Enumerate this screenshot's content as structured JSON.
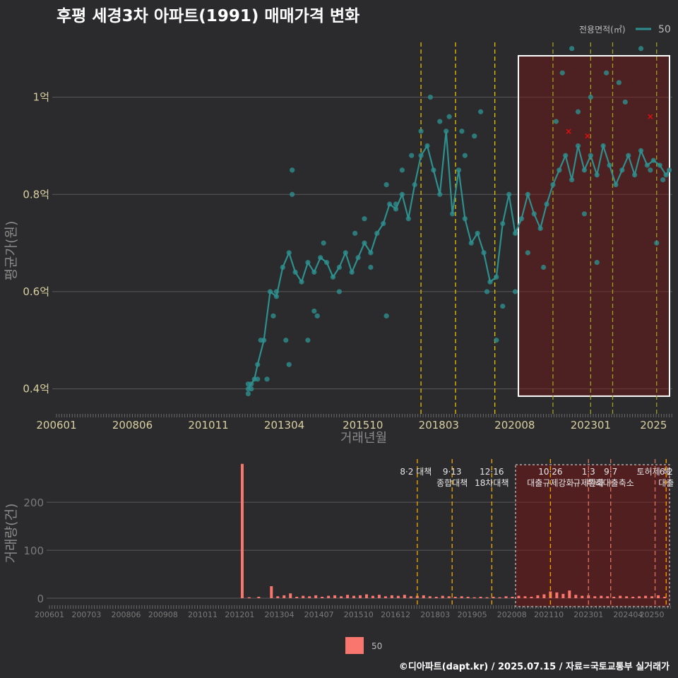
{
  "chart_data": [
    {
      "type": "line",
      "title": "후평 세경3차 아파트(1991) 매매가격 변화",
      "xlabel": "거래년월",
      "ylabel": "평균가(원)",
      "x_ticks": [
        "200601",
        "200806",
        "201011",
        "201304",
        "201510",
        "201803",
        "202008",
        "202301",
        "2025"
      ],
      "y_ticks": [
        {
          "v": 0.4,
          "label": "0.4억"
        },
        {
          "v": 0.6,
          "label": "0.6억"
        },
        {
          "v": 0.8,
          "label": "0.8억"
        },
        {
          "v": 1.0,
          "label": "1억"
        }
      ],
      "ylim": [
        0.35,
        1.12
      ],
      "xlim": [
        2006.0,
        2025.6
      ],
      "legend": {
        "title": "전용면적(㎡)",
        "entries": [
          "50"
        ],
        "placement": "top-right"
      },
      "series": [
        {
          "name": "50",
          "color": "#2e8f8f",
          "points": [
            [
              2012.1,
              0.4
            ],
            [
              2012.2,
              0.41
            ],
            [
              2012.3,
              0.42
            ],
            [
              2012.4,
              0.45
            ],
            [
              2012.6,
              0.5
            ],
            [
              2012.8,
              0.6
            ],
            [
              2013.0,
              0.59
            ],
            [
              2013.2,
              0.65
            ],
            [
              2013.4,
              0.68
            ],
            [
              2013.6,
              0.64
            ],
            [
              2013.8,
              0.62
            ],
            [
              2014.0,
              0.66
            ],
            [
              2014.2,
              0.64
            ],
            [
              2014.4,
              0.67
            ],
            [
              2014.6,
              0.66
            ],
            [
              2014.8,
              0.63
            ],
            [
              2015.0,
              0.65
            ],
            [
              2015.2,
              0.68
            ],
            [
              2015.4,
              0.64
            ],
            [
              2015.6,
              0.67
            ],
            [
              2015.8,
              0.7
            ],
            [
              2016.0,
              0.68
            ],
            [
              2016.2,
              0.72
            ],
            [
              2016.4,
              0.74
            ],
            [
              2016.6,
              0.78
            ],
            [
              2016.8,
              0.77
            ],
            [
              2017.0,
              0.8
            ],
            [
              2017.2,
              0.75
            ],
            [
              2017.4,
              0.82
            ],
            [
              2017.6,
              0.88
            ],
            [
              2017.8,
              0.9
            ],
            [
              2018.0,
              0.85
            ],
            [
              2018.2,
              0.8
            ],
            [
              2018.4,
              0.93
            ],
            [
              2018.6,
              0.76
            ],
            [
              2018.8,
              0.85
            ],
            [
              2019.0,
              0.75
            ],
            [
              2019.2,
              0.7
            ],
            [
              2019.4,
              0.72
            ],
            [
              2019.6,
              0.68
            ],
            [
              2019.8,
              0.62
            ],
            [
              2020.0,
              0.63
            ],
            [
              2020.2,
              0.74
            ],
            [
              2020.4,
              0.8
            ],
            [
              2020.6,
              0.72
            ],
            [
              2020.8,
              0.75
            ],
            [
              2021.0,
              0.8
            ],
            [
              2021.2,
              0.76
            ],
            [
              2021.4,
              0.73
            ],
            [
              2021.6,
              0.78
            ],
            [
              2021.8,
              0.82
            ],
            [
              2022.0,
              0.85
            ],
            [
              2022.2,
              0.88
            ],
            [
              2022.4,
              0.83
            ],
            [
              2022.6,
              0.9
            ],
            [
              2022.8,
              0.85
            ],
            [
              2023.0,
              0.88
            ],
            [
              2023.2,
              0.84
            ],
            [
              2023.4,
              0.9
            ],
            [
              2023.6,
              0.86
            ],
            [
              2023.8,
              0.82
            ],
            [
              2024.0,
              0.85
            ],
            [
              2024.2,
              0.88
            ],
            [
              2024.4,
              0.84
            ],
            [
              2024.6,
              0.89
            ],
            [
              2024.8,
              0.86
            ],
            [
              2025.0,
              0.87
            ],
            [
              2025.2,
              0.86
            ],
            [
              2025.4,
              0.84
            ],
            [
              2025.5,
              0.85
            ]
          ],
          "scatter": [
            [
              2012.1,
              0.39
            ],
            [
              2012.1,
              0.41
            ],
            [
              2012.2,
              0.4
            ],
            [
              2012.4,
              0.42
            ],
            [
              2012.5,
              0.5
            ],
            [
              2012.7,
              0.42
            ],
            [
              2012.9,
              0.55
            ],
            [
              2013.0,
              0.6
            ],
            [
              2013.3,
              0.5
            ],
            [
              2013.4,
              0.45
            ],
            [
              2013.5,
              0.8
            ],
            [
              2013.5,
              0.85
            ],
            [
              2014.0,
              0.5
            ],
            [
              2014.2,
              0.56
            ],
            [
              2014.3,
              0.55
            ],
            [
              2014.5,
              0.7
            ],
            [
              2015.0,
              0.6
            ],
            [
              2015.5,
              0.72
            ],
            [
              2015.8,
              0.75
            ],
            [
              2016.0,
              0.65
            ],
            [
              2016.5,
              0.55
            ],
            [
              2016.5,
              0.82
            ],
            [
              2016.8,
              0.78
            ],
            [
              2017.0,
              0.85
            ],
            [
              2017.3,
              0.88
            ],
            [
              2017.6,
              0.93
            ],
            [
              2017.9,
              1.0
            ],
            [
              2018.2,
              0.95
            ],
            [
              2018.5,
              0.96
            ],
            [
              2018.9,
              0.93
            ],
            [
              2019.0,
              0.88
            ],
            [
              2019.3,
              0.92
            ],
            [
              2019.5,
              0.97
            ],
            [
              2019.7,
              0.6
            ],
            [
              2020.0,
              0.5
            ],
            [
              2020.2,
              0.57
            ],
            [
              2020.6,
              0.6
            ],
            [
              2021.0,
              0.68
            ],
            [
              2021.5,
              0.65
            ],
            [
              2021.9,
              0.95
            ],
            [
              2022.1,
              1.05
            ],
            [
              2022.4,
              1.1
            ],
            [
              2022.6,
              0.97
            ],
            [
              2022.8,
              0.76
            ],
            [
              2023.0,
              1.0
            ],
            [
              2023.2,
              0.66
            ],
            [
              2023.5,
              1.05
            ],
            [
              2023.9,
              1.03
            ],
            [
              2024.1,
              0.99
            ],
            [
              2024.6,
              1.1
            ],
            [
              2024.9,
              0.85
            ],
            [
              2025.1,
              0.7
            ],
            [
              2025.3,
              0.83
            ]
          ],
          "outliers": [
            [
              2022.3,
              0.93
            ],
            [
              2022.9,
              0.92
            ],
            [
              2024.9,
              0.96
            ]
          ]
        }
      ],
      "shaded_region": [
        2020.7,
        2025.6
      ],
      "event_lines": [
        2017.6,
        2018.7,
        2019.95,
        2021.8,
        2023.0,
        2023.7,
        2025.1
      ]
    },
    {
      "type": "bar",
      "xlabel": "",
      "ylabel": "거래량(건)",
      "x_ticks": [
        "200601",
        "200703",
        "200806",
        "200908",
        "201011",
        "201201",
        "201304",
        "201407",
        "201510",
        "201612",
        "201803",
        "201905",
        "202008",
        "202110",
        "202301",
        "202404",
        "20250"
      ],
      "y_ticks": [
        0,
        100,
        200
      ],
      "ylim": [
        0,
        290
      ],
      "legend": {
        "entries": [
          "50"
        ],
        "placement": "bottom"
      },
      "series": [
        {
          "name": "50",
          "color": "#f8766d",
          "bars": [
            [
              2012.08,
              280
            ],
            [
              2012.3,
              2
            ],
            [
              2012.6,
              3
            ],
            [
              2013.0,
              25
            ],
            [
              2013.2,
              4
            ],
            [
              2013.4,
              6
            ],
            [
              2013.6,
              10
            ],
            [
              2013.8,
              3
            ],
            [
              2014.0,
              5
            ],
            [
              2014.2,
              4
            ],
            [
              2014.4,
              6
            ],
            [
              2014.6,
              3
            ],
            [
              2014.8,
              5
            ],
            [
              2015.0,
              6
            ],
            [
              2015.2,
              4
            ],
            [
              2015.4,
              7
            ],
            [
              2015.6,
              5
            ],
            [
              2015.8,
              6
            ],
            [
              2016.0,
              8
            ],
            [
              2016.2,
              5
            ],
            [
              2016.4,
              7
            ],
            [
              2016.6,
              4
            ],
            [
              2016.8,
              6
            ],
            [
              2017.0,
              5
            ],
            [
              2017.2,
              7
            ],
            [
              2017.4,
              4
            ],
            [
              2017.6,
              5
            ],
            [
              2017.8,
              6
            ],
            [
              2018.0,
              4
            ],
            [
              2018.2,
              3
            ],
            [
              2018.4,
              5
            ],
            [
              2018.6,
              4
            ],
            [
              2018.8,
              3
            ],
            [
              2019.0,
              4
            ],
            [
              2019.2,
              3
            ],
            [
              2019.4,
              2
            ],
            [
              2019.6,
              3
            ],
            [
              2019.8,
              2
            ],
            [
              2020.0,
              3
            ],
            [
              2020.2,
              2
            ],
            [
              2020.4,
              4
            ],
            [
              2020.6,
              3
            ],
            [
              2020.8,
              5
            ],
            [
              2021.0,
              4
            ],
            [
              2021.2,
              3
            ],
            [
              2021.4,
              6
            ],
            [
              2021.6,
              8
            ],
            [
              2021.8,
              14
            ],
            [
              2022.0,
              12
            ],
            [
              2022.2,
              9
            ],
            [
              2022.4,
              16
            ],
            [
              2022.6,
              7
            ],
            [
              2022.8,
              5
            ],
            [
              2023.0,
              6
            ],
            [
              2023.2,
              4
            ],
            [
              2023.4,
              5
            ],
            [
              2023.6,
              4
            ],
            [
              2023.8,
              3
            ],
            [
              2024.0,
              5
            ],
            [
              2024.2,
              4
            ],
            [
              2024.4,
              3
            ],
            [
              2024.6,
              4
            ],
            [
              2024.8,
              5
            ],
            [
              2025.0,
              4
            ],
            [
              2025.2,
              6
            ],
            [
              2025.4,
              3
            ]
          ]
        }
      ],
      "shaded_region": [
        2020.7,
        2025.6
      ],
      "annotations": [
        {
          "x": 2017.6,
          "lines": [
            "8·2 대책"
          ],
          "color": "#e8a000"
        },
        {
          "x": 2018.7,
          "lines": [
            "9·13",
            "종합대책"
          ],
          "color": "#e8a000"
        },
        {
          "x": 2019.95,
          "lines": [
            "12·16",
            "18차대책"
          ],
          "color": "#e8a000"
        },
        {
          "x": 2021.8,
          "lines": [
            "10·26",
            "대출규제강화"
          ],
          "color": "#e8a000"
        },
        {
          "x": 2023.0,
          "lines": [
            "1·3",
            "규제완화"
          ],
          "color": "#d07060"
        },
        {
          "x": 2023.7,
          "lines": [
            "9·7",
            "특례대출축소"
          ],
          "color": "#d07060"
        },
        {
          "x": 2025.1,
          "lines": [
            "토허제 해"
          ],
          "color": "#d07060"
        },
        {
          "x": 2025.45,
          "lines": [
            "6·2",
            "대출"
          ],
          "color": "#e8a000"
        }
      ]
    }
  ],
  "footer": {
    "source": "©디아파트(dapt.kr) / 2025.07.15 / 자료=국토교통부 실거래가"
  }
}
